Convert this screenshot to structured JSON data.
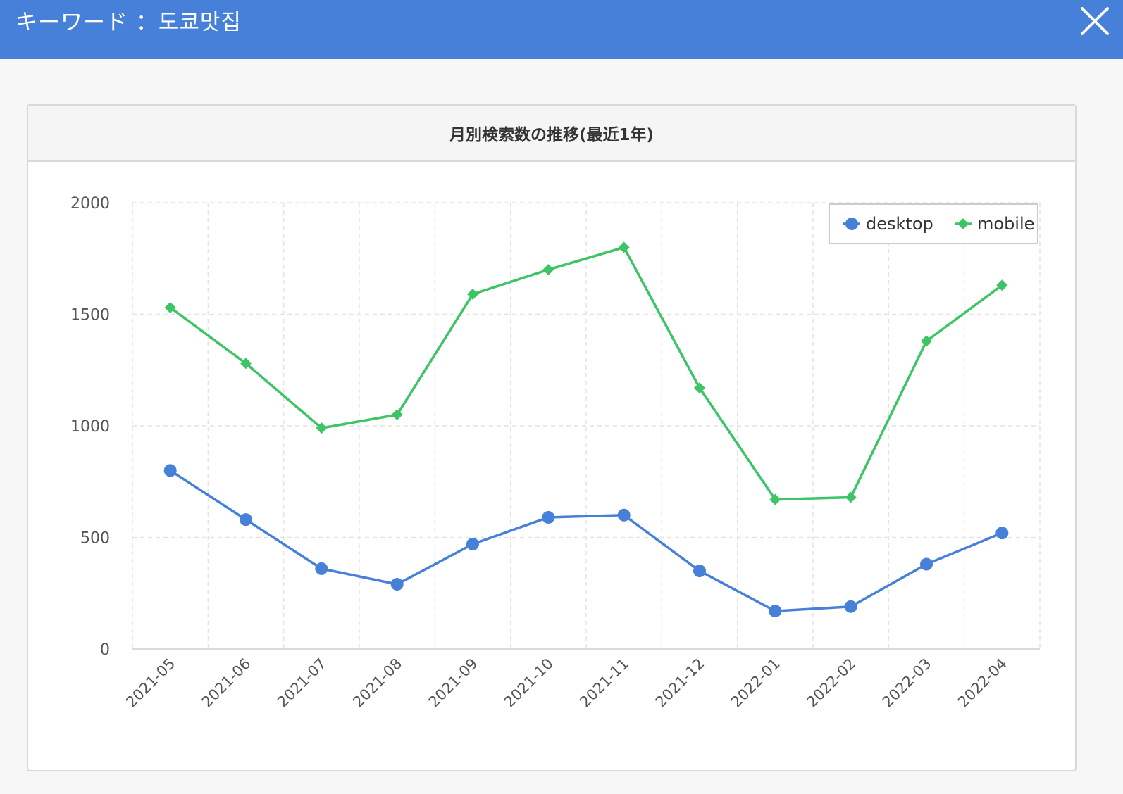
{
  "header": {
    "title": "キーワード ：도쿄맛집",
    "close_label": "×"
  },
  "panel": {
    "title": "月別検索数の推移(最近1年)"
  },
  "chart_data": {
    "type": "line",
    "title": "月別検索数の推移(最近1年)",
    "xlabel": "",
    "ylabel": "",
    "categories": [
      "2021-05",
      "2021-06",
      "2021-07",
      "2021-08",
      "2021-09",
      "2021-10",
      "2021-11",
      "2021-12",
      "2022-01",
      "2022-02",
      "2022-03",
      "2022-04"
    ],
    "ylim": [
      0,
      2000
    ],
    "yticks": [
      0,
      500,
      1000,
      1500,
      2000
    ],
    "grid": true,
    "legend_position": "top-right",
    "series": [
      {
        "name": "desktop",
        "marker": "circle",
        "color": "#4680d9",
        "values": [
          800,
          580,
          360,
          290,
          470,
          590,
          600,
          350,
          170,
          190,
          380,
          520
        ]
      },
      {
        "name": "mobile",
        "marker": "diamond",
        "color": "#3cc465",
        "values": [
          1530,
          1280,
          990,
          1050,
          1590,
          1700,
          1800,
          1170,
          670,
          680,
          1380,
          1630
        ]
      }
    ]
  }
}
